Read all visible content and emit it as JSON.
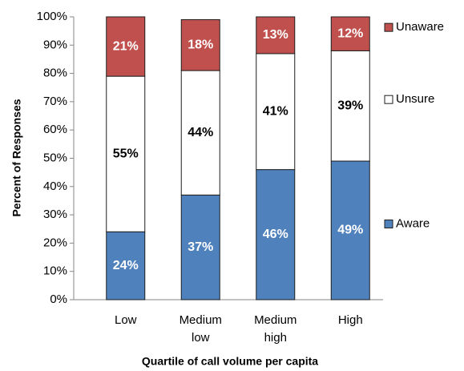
{
  "chart_data": {
    "type": "stacked_bar",
    "xlabel": "Quartile of call volume per capita",
    "ylabel": "Percent of Responses",
    "categories": [
      "Low",
      "Medium low",
      "Medium high",
      "High"
    ],
    "series": [
      {
        "name": "Aware",
        "color": "#4f81bd",
        "values": [
          24,
          37,
          46,
          49
        ],
        "value_labels": [
          "24%",
          "37%",
          "46%",
          "49%"
        ],
        "label_color": "#ffffff"
      },
      {
        "name": "Unsure",
        "color": "#ffffff",
        "values": [
          55,
          44,
          41,
          39
        ],
        "value_labels": [
          "55%",
          "44%",
          "41%",
          "39%"
        ],
        "label_color": "#000000"
      },
      {
        "name": "Unaware",
        "color": "#c0504d",
        "values": [
          21,
          18,
          13,
          12
        ],
        "value_labels": [
          "21%",
          "18%",
          "13%",
          "12%"
        ],
        "label_color": "#ffffff"
      }
    ],
    "ylim": [
      0,
      100
    ],
    "yticks": [
      {
        "value": 0,
        "label": "0%"
      },
      {
        "value": 10,
        "label": "10%"
      },
      {
        "value": 20,
        "label": "20%"
      },
      {
        "value": 30,
        "label": "30%"
      },
      {
        "value": 40,
        "label": "40%"
      },
      {
        "value": 50,
        "label": "50%"
      },
      {
        "value": 60,
        "label": "60%"
      },
      {
        "value": 70,
        "label": "70%"
      },
      {
        "value": 80,
        "label": "80%"
      },
      {
        "value": 90,
        "label": "90%"
      },
      {
        "value": 100,
        "label": "100%"
      }
    ],
    "legend": "right",
    "grid": false
  }
}
